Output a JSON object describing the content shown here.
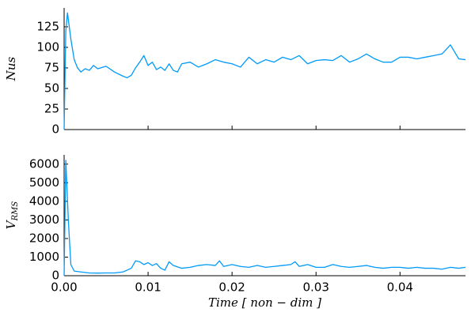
{
  "chart_data": [
    {
      "type": "line",
      "ylabel": "Nus",
      "x": [
        0,
        0.0002,
        0.0004,
        0.0008,
        0.0012,
        0.0016,
        0.002,
        0.0025,
        0.003,
        0.0035,
        0.004,
        0.005,
        0.006,
        0.007,
        0.0075,
        0.008,
        0.0085,
        0.009,
        0.0095,
        0.01,
        0.0105,
        0.011,
        0.0115,
        0.012,
        0.0125,
        0.013,
        0.0135,
        0.014,
        0.015,
        0.016,
        0.017,
        0.018,
        0.019,
        0.02,
        0.021,
        0.022,
        0.023,
        0.024,
        0.025,
        0.026,
        0.027,
        0.028,
        0.029,
        0.03,
        0.031,
        0.032,
        0.033,
        0.034,
        0.035,
        0.036,
        0.037,
        0.038,
        0.039,
        0.04,
        0.041,
        0.042,
        0.043,
        0.044,
        0.045,
        0.046,
        0.047,
        0.0478
      ],
      "series": [
        {
          "color": "#009af9",
          "values": [
            0,
            120,
            142,
            110,
            85,
            75,
            70,
            74,
            72,
            78,
            74,
            77,
            70,
            65,
            63,
            66,
            75,
            82,
            90,
            78,
            82,
            73,
            76,
            72,
            80,
            72,
            70,
            80,
            82,
            76,
            80,
            85,
            82,
            80,
            76,
            88,
            80,
            85,
            82,
            88,
            85,
            90,
            80,
            84,
            85,
            84,
            90,
            82,
            86,
            92,
            86,
            82,
            82,
            88,
            88,
            86,
            88,
            90,
            92,
            103,
            86,
            85
          ]
        }
      ],
      "xlim": [
        0,
        0.0478
      ],
      "ylim": [
        0,
        148
      ],
      "yticks": [
        0,
        25,
        50,
        75,
        100,
        125
      ]
    },
    {
      "type": "line",
      "ylabel": "V",
      "ylabel_subscript": "RMS",
      "xlabel": "Time [ non − dim ]",
      "x": [
        0,
        0.0002,
        0.0005,
        0.0008,
        0.0012,
        0.002,
        0.003,
        0.004,
        0.005,
        0.006,
        0.007,
        0.008,
        0.0085,
        0.009,
        0.0095,
        0.01,
        0.0105,
        0.011,
        0.0115,
        0.012,
        0.0125,
        0.013,
        0.014,
        0.015,
        0.016,
        0.017,
        0.018,
        0.0185,
        0.019,
        0.02,
        0.021,
        0.022,
        0.023,
        0.024,
        0.025,
        0.026,
        0.027,
        0.0275,
        0.028,
        0.029,
        0.03,
        0.031,
        0.032,
        0.033,
        0.034,
        0.035,
        0.036,
        0.037,
        0.038,
        0.039,
        0.04,
        0.041,
        0.042,
        0.043,
        0.044,
        0.045,
        0.046,
        0.047,
        0.0478
      ],
      "series": [
        {
          "color": "#009af9",
          "values": [
            0,
            6200,
            3000,
            600,
            250,
            200,
            150,
            140,
            150,
            150,
            200,
            400,
            800,
            750,
            600,
            700,
            550,
            650,
            400,
            300,
            750,
            550,
            400,
            450,
            550,
            600,
            550,
            800,
            500,
            600,
            500,
            450,
            550,
            450,
            500,
            550,
            600,
            750,
            500,
            600,
            450,
            450,
            600,
            500,
            450,
            500,
            550,
            450,
            400,
            450,
            450,
            400,
            450,
            400,
            400,
            350,
            450,
            400,
            450
          ]
        }
      ],
      "xlim": [
        0,
        0.0478
      ],
      "ylim": [
        0,
        6500
      ],
      "xticks": [
        {
          "value": 0,
          "label": "0.00"
        },
        0.01,
        0.02,
        0.03,
        0.04
      ],
      "yticks": [
        0,
        1000,
        2000,
        3000,
        4000,
        5000,
        6000
      ]
    }
  ]
}
